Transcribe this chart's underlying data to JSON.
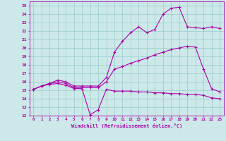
{
  "xlabel": "Windchill (Refroidissement éolien,°C)",
  "bg_color": "#cce8e8",
  "line_color": "#aa00aa",
  "grid_color": "#99cccc",
  "xlim": [
    -0.5,
    23.5
  ],
  "ylim": [
    12,
    25.5
  ],
  "xticks": [
    0,
    1,
    2,
    3,
    4,
    5,
    6,
    7,
    8,
    9,
    10,
    11,
    12,
    13,
    14,
    15,
    16,
    17,
    18,
    19,
    20,
    21,
    22,
    23
  ],
  "yticks": [
    12,
    13,
    14,
    15,
    16,
    17,
    18,
    19,
    20,
    21,
    22,
    23,
    24,
    25
  ],
  "line1_x": [
    0,
    1,
    2,
    3,
    4,
    5,
    6,
    7,
    8,
    9,
    10,
    11,
    12,
    13,
    14,
    15,
    16,
    17,
    18,
    19,
    20,
    21,
    22,
    23
  ],
  "line1_y": [
    15.1,
    15.5,
    15.7,
    15.8,
    15.6,
    15.2,
    15.2,
    12.1,
    12.7,
    15.1,
    14.9,
    14.9,
    14.9,
    14.8,
    14.8,
    14.7,
    14.7,
    14.6,
    14.6,
    14.5,
    14.5,
    14.4,
    14.1,
    14.0
  ],
  "line2_x": [
    0,
    1,
    2,
    3,
    4,
    5,
    6,
    7,
    8,
    9,
    10,
    11,
    12,
    13,
    14,
    15,
    16,
    17,
    18,
    19,
    20,
    21,
    22,
    23
  ],
  "line2_y": [
    15.1,
    15.5,
    15.8,
    16.0,
    15.8,
    15.3,
    15.3,
    15.3,
    15.3,
    16.0,
    17.5,
    17.8,
    18.2,
    18.5,
    18.8,
    19.2,
    19.5,
    19.8,
    20.0,
    20.2,
    20.1,
    17.5,
    15.2,
    14.8
  ],
  "line3_x": [
    0,
    1,
    2,
    3,
    4,
    5,
    6,
    7,
    8,
    9,
    10,
    11,
    12,
    13,
    14,
    15,
    16,
    17,
    18,
    19,
    20,
    21,
    22,
    23
  ],
  "line3_y": [
    15.1,
    15.5,
    15.8,
    16.2,
    16.0,
    15.5,
    15.5,
    15.5,
    15.5,
    16.5,
    19.5,
    20.8,
    21.8,
    22.5,
    21.8,
    22.2,
    24.0,
    24.7,
    24.8,
    22.5,
    22.4,
    22.3,
    22.5,
    22.3
  ]
}
